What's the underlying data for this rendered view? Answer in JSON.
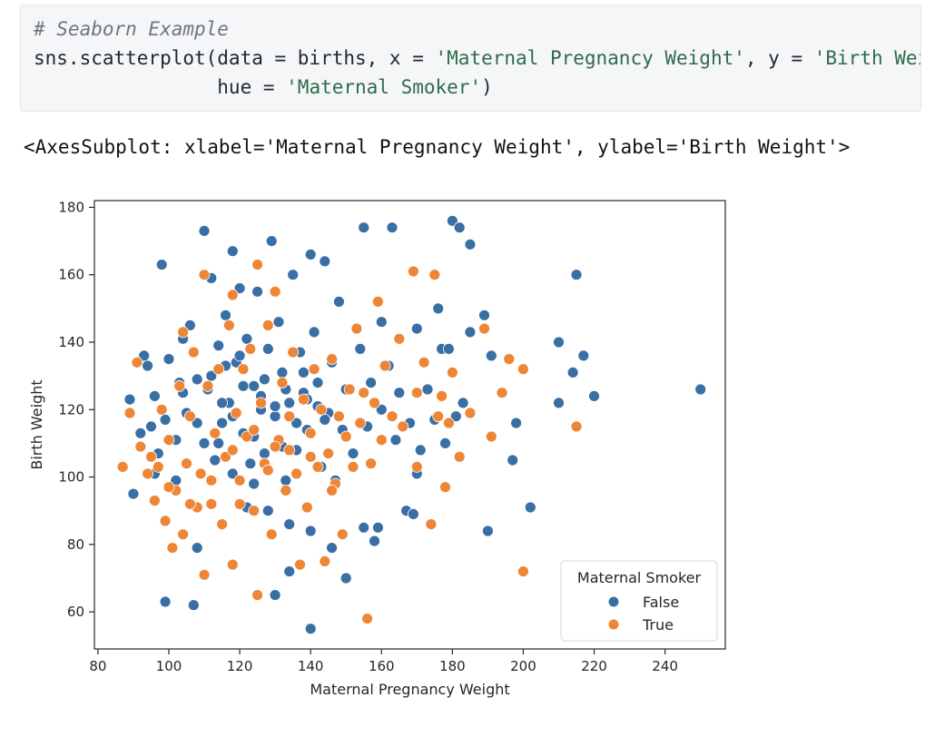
{
  "code_cell": {
    "comment": "# Seaborn Example",
    "line2_prefix": "sns.scatterplot(data = births, x = ",
    "x_arg": "'Maternal Pregnancy Weight'",
    "line2_mid": ", y = ",
    "y_arg": "'Birth Weight'",
    "trailing_comma": ",",
    "line3_prefix": "                hue = ",
    "hue_arg": "'Maternal Smoker'",
    "line3_suffix": ")"
  },
  "output_text": "<AxesSubplot: xlabel='Maternal Pregnancy Weight', ylabel='Birth Weight'>",
  "chart_data": {
    "type": "scatter",
    "title": "",
    "xlabel": "Maternal Pregnancy Weight",
    "ylabel": "Birth Weight",
    "xlim": [
      79,
      257
    ],
    "ylim": [
      49,
      182
    ],
    "xticks": [
      80,
      100,
      120,
      140,
      160,
      180,
      200,
      220,
      240
    ],
    "yticks": [
      60,
      80,
      100,
      120,
      140,
      160,
      180
    ],
    "grid": false,
    "legend": {
      "title": "Maternal Smoker",
      "placement": "bottom-right"
    },
    "series": [
      {
        "name": "False",
        "color": "#3a6fa6",
        "points": [
          [
            89,
            123
          ],
          [
            90,
            95
          ],
          [
            92,
            113
          ],
          [
            93,
            136
          ],
          [
            94,
            133
          ],
          [
            95,
            115
          ],
          [
            96,
            124
          ],
          [
            97,
            107
          ],
          [
            98,
            163
          ],
          [
            99,
            63
          ],
          [
            99,
            117
          ],
          [
            100,
            135
          ],
          [
            102,
            111
          ],
          [
            103,
            128
          ],
          [
            104,
            141
          ],
          [
            105,
            119
          ],
          [
            106,
            145
          ],
          [
            107,
            62
          ],
          [
            108,
            79
          ],
          [
            108,
            129
          ],
          [
            110,
            173
          ],
          [
            110,
            110
          ],
          [
            111,
            126
          ],
          [
            112,
            159
          ],
          [
            113,
            105
          ],
          [
            114,
            139
          ],
          [
            115,
            116
          ],
          [
            116,
            148
          ],
          [
            117,
            122
          ],
          [
            118,
            167
          ],
          [
            118,
            101
          ],
          [
            119,
            134
          ],
          [
            120,
            156
          ],
          [
            121,
            113
          ],
          [
            122,
            141
          ],
          [
            123,
            104
          ],
          [
            124,
            127
          ],
          [
            125,
            155
          ],
          [
            126,
            120
          ],
          [
            127,
            107
          ],
          [
            128,
            138
          ],
          [
            129,
            170
          ],
          [
            130,
            65
          ],
          [
            130,
            118
          ],
          [
            131,
            146
          ],
          [
            132,
            131
          ],
          [
            133,
            99
          ],
          [
            134,
            122
          ],
          [
            135,
            160
          ],
          [
            136,
            108
          ],
          [
            137,
            137
          ],
          [
            138,
            125
          ],
          [
            139,
            114
          ],
          [
            140,
            166
          ],
          [
            140,
            55
          ],
          [
            141,
            143
          ],
          [
            142,
            128
          ],
          [
            143,
            103
          ],
          [
            144,
            164
          ],
          [
            145,
            119
          ],
          [
            146,
            134
          ],
          [
            147,
            99
          ],
          [
            148,
            152
          ],
          [
            149,
            114
          ],
          [
            150,
            126
          ],
          [
            152,
            107
          ],
          [
            154,
            138
          ],
          [
            155,
            174
          ],
          [
            155,
            85
          ],
          [
            156,
            115
          ],
          [
            157,
            128
          ],
          [
            158,
            81
          ],
          [
            159,
            85
          ],
          [
            160,
            146
          ],
          [
            160,
            120
          ],
          [
            162,
            133
          ],
          [
            163,
            174
          ],
          [
            164,
            111
          ],
          [
            165,
            125
          ],
          [
            167,
            90
          ],
          [
            168,
            116
          ],
          [
            169,
            89
          ],
          [
            170,
            144
          ],
          [
            170,
            101
          ],
          [
            171,
            108
          ],
          [
            173,
            126
          ],
          [
            175,
            117
          ],
          [
            176,
            150
          ],
          [
            177,
            138
          ],
          [
            178,
            110
          ],
          [
            179,
            138
          ],
          [
            180,
            176
          ],
          [
            181,
            118
          ],
          [
            182,
            174
          ],
          [
            183,
            122
          ],
          [
            185,
            169
          ],
          [
            185,
            143
          ],
          [
            189,
            148
          ],
          [
            190,
            84
          ],
          [
            191,
            136
          ],
          [
            197,
            105
          ],
          [
            198,
            116
          ],
          [
            202,
            91
          ],
          [
            210,
            140
          ],
          [
            210,
            122
          ],
          [
            214,
            131
          ],
          [
            215,
            160
          ],
          [
            217,
            136
          ],
          [
            220,
            124
          ],
          [
            250,
            126
          ],
          [
            112,
            130
          ],
          [
            115,
            122
          ],
          [
            118,
            118
          ],
          [
            121,
            127
          ],
          [
            124,
            112
          ],
          [
            127,
            129
          ],
          [
            130,
            121
          ],
          [
            133,
            126
          ],
          [
            136,
            116
          ],
          [
            139,
            123
          ],
          [
            142,
            121
          ],
          [
            114,
            110
          ],
          [
            120,
            136
          ],
          [
            126,
            124
          ],
          [
            132,
            109
          ],
          [
            138,
            131
          ],
          [
            144,
            117
          ],
          [
            108,
            116
          ],
          [
            116,
            133
          ],
          [
            124,
            98
          ],
          [
            128,
            90
          ],
          [
            134,
            86
          ],
          [
            140,
            84
          ],
          [
            146,
            79
          ],
          [
            150,
            70
          ],
          [
            134,
            72
          ],
          [
            122,
            91
          ],
          [
            102,
            99
          ],
          [
            96,
            101
          ],
          [
            104,
            125
          ]
        ]
      },
      {
        "name": "True",
        "color": "#ee8636",
        "points": [
          [
            87,
            103
          ],
          [
            89,
            119
          ],
          [
            91,
            134
          ],
          [
            92,
            109
          ],
          [
            94,
            101
          ],
          [
            96,
            93
          ],
          [
            97,
            103
          ],
          [
            98,
            120
          ],
          [
            99,
            87
          ],
          [
            100,
            111
          ],
          [
            101,
            79
          ],
          [
            102,
            96
          ],
          [
            103,
            127
          ],
          [
            104,
            143
          ],
          [
            104,
            83
          ],
          [
            105,
            104
          ],
          [
            106,
            118
          ],
          [
            107,
            137
          ],
          [
            108,
            91
          ],
          [
            109,
            101
          ],
          [
            110,
            160
          ],
          [
            110,
            71
          ],
          [
            111,
            127
          ],
          [
            112,
            92
          ],
          [
            113,
            113
          ],
          [
            114,
            132
          ],
          [
            115,
            86
          ],
          [
            116,
            106
          ],
          [
            117,
            145
          ],
          [
            118,
            154
          ],
          [
            118,
            74
          ],
          [
            119,
            119
          ],
          [
            120,
            99
          ],
          [
            121,
            132
          ],
          [
            122,
            112
          ],
          [
            123,
            138
          ],
          [
            124,
            90
          ],
          [
            125,
            163
          ],
          [
            125,
            65
          ],
          [
            126,
            122
          ],
          [
            127,
            104
          ],
          [
            128,
            145
          ],
          [
            129,
            83
          ],
          [
            130,
            155
          ],
          [
            131,
            111
          ],
          [
            132,
            128
          ],
          [
            133,
            96
          ],
          [
            134,
            118
          ],
          [
            135,
            137
          ],
          [
            136,
            101
          ],
          [
            137,
            74
          ],
          [
            138,
            123
          ],
          [
            139,
            91
          ],
          [
            140,
            113
          ],
          [
            141,
            132
          ],
          [
            142,
            103
          ],
          [
            143,
            120
          ],
          [
            144,
            75
          ],
          [
            145,
            107
          ],
          [
            146,
            135
          ],
          [
            147,
            98
          ],
          [
            148,
            118
          ],
          [
            149,
            83
          ],
          [
            150,
            112
          ],
          [
            151,
            126
          ],
          [
            152,
            103
          ],
          [
            153,
            144
          ],
          [
            154,
            116
          ],
          [
            155,
            125
          ],
          [
            156,
            58
          ],
          [
            157,
            104
          ],
          [
            158,
            122
          ],
          [
            159,
            152
          ],
          [
            160,
            111
          ],
          [
            161,
            133
          ],
          [
            163,
            118
          ],
          [
            165,
            141
          ],
          [
            166,
            115
          ],
          [
            169,
            161
          ],
          [
            170,
            125
          ],
          [
            170,
            103
          ],
          [
            172,
            134
          ],
          [
            174,
            86
          ],
          [
            175,
            160
          ],
          [
            176,
            118
          ],
          [
            177,
            124
          ],
          [
            178,
            97
          ],
          [
            179,
            116
          ],
          [
            180,
            131
          ],
          [
            182,
            106
          ],
          [
            185,
            119
          ],
          [
            189,
            144
          ],
          [
            191,
            112
          ],
          [
            194,
            125
          ],
          [
            196,
            135
          ],
          [
            200,
            132
          ],
          [
            200,
            72
          ],
          [
            215,
            115
          ],
          [
            106,
            92
          ],
          [
            112,
            99
          ],
          [
            120,
            92
          ],
          [
            128,
            102
          ],
          [
            134,
            108
          ],
          [
            140,
            106
          ],
          [
            146,
            96
          ],
          [
            130,
            109
          ],
          [
            124,
            114
          ],
          [
            118,
            108
          ],
          [
            100,
            97
          ],
          [
            95,
            106
          ]
        ]
      }
    ]
  }
}
